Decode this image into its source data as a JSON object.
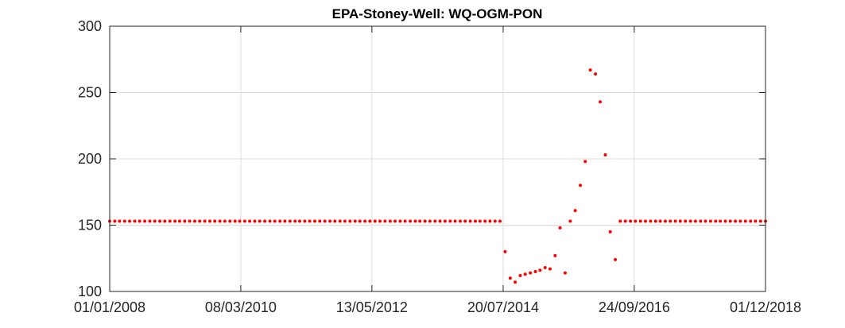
{
  "chart_data": {
    "type": "scatter",
    "title": "EPA-Stoney-Well: WQ-OGM-PON",
    "xlabel": "",
    "ylabel": "",
    "x_axis_type": "date",
    "xlim": [
      "2008-01-01",
      "2018-12-01"
    ],
    "ylim": [
      100,
      300
    ],
    "x_ticks": [
      "2008-01-01",
      "2010-03-08",
      "2012-05-13",
      "2014-07-20",
      "2016-09-24",
      "2018-12-01"
    ],
    "x_tick_labels": [
      "01/01/2008",
      "08/03/2010",
      "13/05/2012",
      "20/07/2014",
      "24/09/2016",
      "01/12/2018"
    ],
    "y_ticks": [
      100,
      150,
      200,
      250,
      300
    ],
    "y_tick_labels": [
      "100",
      "150",
      "200",
      "250",
      "300"
    ],
    "grid": true,
    "legend": "none",
    "colors": {
      "marker": "#ff0000",
      "grid": "#dcdcdc",
      "axis": "#262626"
    },
    "series": [
      {
        "marker": "dot",
        "points": [
          {
            "x": "2008-01-01",
            "y": 153
          },
          {
            "x": "2008-02-01",
            "y": 153
          },
          {
            "x": "2008-03-01",
            "y": 153
          },
          {
            "x": "2008-04-01",
            "y": 153
          },
          {
            "x": "2008-05-01",
            "y": 153
          },
          {
            "x": "2008-06-01",
            "y": 153
          },
          {
            "x": "2008-07-01",
            "y": 153
          },
          {
            "x": "2008-08-01",
            "y": 153
          },
          {
            "x": "2008-09-01",
            "y": 153
          },
          {
            "x": "2008-10-01",
            "y": 153
          },
          {
            "x": "2008-11-01",
            "y": 153
          },
          {
            "x": "2008-12-01",
            "y": 153
          },
          {
            "x": "2009-01-01",
            "y": 153
          },
          {
            "x": "2009-02-01",
            "y": 153
          },
          {
            "x": "2009-03-01",
            "y": 153
          },
          {
            "x": "2009-04-01",
            "y": 153
          },
          {
            "x": "2009-05-01",
            "y": 153
          },
          {
            "x": "2009-06-01",
            "y": 153
          },
          {
            "x": "2009-07-01",
            "y": 153
          },
          {
            "x": "2009-08-01",
            "y": 153
          },
          {
            "x": "2009-09-01",
            "y": 153
          },
          {
            "x": "2009-10-01",
            "y": 153
          },
          {
            "x": "2009-11-01",
            "y": 153
          },
          {
            "x": "2009-12-01",
            "y": 153
          },
          {
            "x": "2010-01-01",
            "y": 153
          },
          {
            "x": "2010-02-01",
            "y": 153
          },
          {
            "x": "2010-03-01",
            "y": 153
          },
          {
            "x": "2010-04-01",
            "y": 153
          },
          {
            "x": "2010-05-01",
            "y": 153
          },
          {
            "x": "2010-06-01",
            "y": 153
          },
          {
            "x": "2010-07-01",
            "y": 153
          },
          {
            "x": "2010-08-01",
            "y": 153
          },
          {
            "x": "2010-09-01",
            "y": 153
          },
          {
            "x": "2010-10-01",
            "y": 153
          },
          {
            "x": "2010-11-01",
            "y": 153
          },
          {
            "x": "2010-12-01",
            "y": 153
          },
          {
            "x": "2011-01-01",
            "y": 153
          },
          {
            "x": "2011-02-01",
            "y": 153
          },
          {
            "x": "2011-03-01",
            "y": 153
          },
          {
            "x": "2011-04-01",
            "y": 153
          },
          {
            "x": "2011-05-01",
            "y": 153
          },
          {
            "x": "2011-06-01",
            "y": 153
          },
          {
            "x": "2011-07-01",
            "y": 153
          },
          {
            "x": "2011-08-01",
            "y": 153
          },
          {
            "x": "2011-09-01",
            "y": 153
          },
          {
            "x": "2011-10-01",
            "y": 153
          },
          {
            "x": "2011-11-01",
            "y": 153
          },
          {
            "x": "2011-12-01",
            "y": 153
          },
          {
            "x": "2012-01-01",
            "y": 153
          },
          {
            "x": "2012-02-01",
            "y": 153
          },
          {
            "x": "2012-03-01",
            "y": 153
          },
          {
            "x": "2012-04-01",
            "y": 153
          },
          {
            "x": "2012-05-01",
            "y": 153
          },
          {
            "x": "2012-06-01",
            "y": 153
          },
          {
            "x": "2012-07-01",
            "y": 153
          },
          {
            "x": "2012-08-01",
            "y": 153
          },
          {
            "x": "2012-09-01",
            "y": 153
          },
          {
            "x": "2012-10-01",
            "y": 153
          },
          {
            "x": "2012-11-01",
            "y": 153
          },
          {
            "x": "2012-12-01",
            "y": 153
          },
          {
            "x": "2013-01-01",
            "y": 153
          },
          {
            "x": "2013-02-01",
            "y": 153
          },
          {
            "x": "2013-03-01",
            "y": 153
          },
          {
            "x": "2013-04-01",
            "y": 153
          },
          {
            "x": "2013-05-01",
            "y": 153
          },
          {
            "x": "2013-06-01",
            "y": 153
          },
          {
            "x": "2013-07-01",
            "y": 153
          },
          {
            "x": "2013-08-01",
            "y": 153
          },
          {
            "x": "2013-09-01",
            "y": 153
          },
          {
            "x": "2013-10-01",
            "y": 153
          },
          {
            "x": "2013-11-01",
            "y": 153
          },
          {
            "x": "2013-12-01",
            "y": 153
          },
          {
            "x": "2014-01-01",
            "y": 153
          },
          {
            "x": "2014-02-01",
            "y": 153
          },
          {
            "x": "2014-03-01",
            "y": 153
          },
          {
            "x": "2014-04-01",
            "y": 153
          },
          {
            "x": "2014-05-01",
            "y": 153
          },
          {
            "x": "2014-06-01",
            "y": 153
          },
          {
            "x": "2014-07-01",
            "y": 153
          },
          {
            "x": "2014-08-01",
            "y": 130
          },
          {
            "x": "2014-09-01",
            "y": 110
          },
          {
            "x": "2014-10-01",
            "y": 107
          },
          {
            "x": "2014-11-01",
            "y": 112
          },
          {
            "x": "2014-12-01",
            "y": 113
          },
          {
            "x": "2015-01-01",
            "y": 114
          },
          {
            "x": "2015-02-01",
            "y": 115
          },
          {
            "x": "2015-03-01",
            "y": 116
          },
          {
            "x": "2015-04-01",
            "y": 118
          },
          {
            "x": "2015-05-01",
            "y": 117
          },
          {
            "x": "2015-06-01",
            "y": 127
          },
          {
            "x": "2015-07-01",
            "y": 148
          },
          {
            "x": "2015-08-01",
            "y": 114
          },
          {
            "x": "2015-09-01",
            "y": 153
          },
          {
            "x": "2015-10-01",
            "y": 161
          },
          {
            "x": "2015-11-01",
            "y": 180
          },
          {
            "x": "2015-12-01",
            "y": 198
          },
          {
            "x": "2016-01-01",
            "y": 267
          },
          {
            "x": "2016-02-01",
            "y": 264
          },
          {
            "x": "2016-03-01",
            "y": 243
          },
          {
            "x": "2016-04-01",
            "y": 203
          },
          {
            "x": "2016-05-01",
            "y": 145
          },
          {
            "x": "2016-06-01",
            "y": 124
          },
          {
            "x": "2016-07-01",
            "y": 153
          },
          {
            "x": "2016-08-01",
            "y": 153
          },
          {
            "x": "2016-09-01",
            "y": 153
          },
          {
            "x": "2016-10-01",
            "y": 153
          },
          {
            "x": "2016-11-01",
            "y": 153
          },
          {
            "x": "2016-12-01",
            "y": 153
          },
          {
            "x": "2017-01-01",
            "y": 153
          },
          {
            "x": "2017-02-01",
            "y": 153
          },
          {
            "x": "2017-03-01",
            "y": 153
          },
          {
            "x": "2017-04-01",
            "y": 153
          },
          {
            "x": "2017-05-01",
            "y": 153
          },
          {
            "x": "2017-06-01",
            "y": 153
          },
          {
            "x": "2017-07-01",
            "y": 153
          },
          {
            "x": "2017-08-01",
            "y": 153
          },
          {
            "x": "2017-09-01",
            "y": 153
          },
          {
            "x": "2017-10-01",
            "y": 153
          },
          {
            "x": "2017-11-01",
            "y": 153
          },
          {
            "x": "2017-12-01",
            "y": 153
          },
          {
            "x": "2018-01-01",
            "y": 153
          },
          {
            "x": "2018-02-01",
            "y": 153
          },
          {
            "x": "2018-03-01",
            "y": 153
          },
          {
            "x": "2018-04-01",
            "y": 153
          },
          {
            "x": "2018-05-01",
            "y": 153
          },
          {
            "x": "2018-06-01",
            "y": 153
          },
          {
            "x": "2018-07-01",
            "y": 153
          },
          {
            "x": "2018-08-01",
            "y": 153
          },
          {
            "x": "2018-09-01",
            "y": 153
          },
          {
            "x": "2018-10-01",
            "y": 153
          },
          {
            "x": "2018-11-01",
            "y": 153
          },
          {
            "x": "2018-12-01",
            "y": 153
          }
        ]
      }
    ]
  }
}
